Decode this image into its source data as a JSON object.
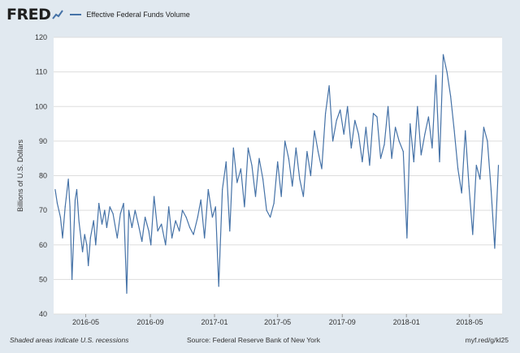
{
  "header": {
    "logo_text": "FRED",
    "logo_icon": "trend-line-icon"
  },
  "footer": {
    "note": "Shaded areas indicate U.S. recessions",
    "source": "Source: Federal Reserve Bank of New York",
    "link": "myf.red/g/kl25"
  },
  "colors": {
    "line": "#4572a7",
    "plot_bg": "#ffffff",
    "page_bg": "#e1e9f0",
    "grid": "#dddddd"
  },
  "chart_data": {
    "type": "line",
    "title": "",
    "xlabel": "",
    "ylabel": "Billions of U.S. Dollars",
    "ylim": [
      40,
      120
    ],
    "yticks": [
      40,
      50,
      60,
      70,
      80,
      90,
      100,
      110,
      120
    ],
    "xlim": [
      "2016-03-01",
      "2018-07-02"
    ],
    "xticks": [
      {
        "date": "2016-05-01",
        "label": "2016-05"
      },
      {
        "date": "2016-09-01",
        "label": "2016-09"
      },
      {
        "date": "2017-01-01",
        "label": "2017-01"
      },
      {
        "date": "2017-05-01",
        "label": "2017-05"
      },
      {
        "date": "2017-09-01",
        "label": "2017-09"
      },
      {
        "date": "2018-01-01",
        "label": "2018-01"
      },
      {
        "date": "2018-05-01",
        "label": "2018-05"
      }
    ],
    "grid": true,
    "series": [
      {
        "name": "Effective Federal Funds Volume",
        "x": [
          "2016-03-04",
          "2016-03-08",
          "2016-03-14",
          "2016-03-18",
          "2016-03-23",
          "2016-03-29",
          "2016-04-01",
          "2016-04-05",
          "2016-04-11",
          "2016-04-14",
          "2016-04-18",
          "2016-04-25",
          "2016-04-29",
          "2016-05-03",
          "2016-05-06",
          "2016-05-10",
          "2016-05-16",
          "2016-05-20",
          "2016-05-26",
          "2016-06-01",
          "2016-06-06",
          "2016-06-10",
          "2016-06-16",
          "2016-06-22",
          "2016-06-30",
          "2016-07-06",
          "2016-07-12",
          "2016-07-18",
          "2016-07-22",
          "2016-07-28",
          "2016-08-03",
          "2016-08-09",
          "2016-08-16",
          "2016-08-22",
          "2016-08-29",
          "2016-09-02",
          "2016-09-08",
          "2016-09-15",
          "2016-09-22",
          "2016-09-30",
          "2016-10-06",
          "2016-10-12",
          "2016-10-19",
          "2016-10-26",
          "2016-11-01",
          "2016-11-08",
          "2016-11-15",
          "2016-11-22",
          "2016-11-30",
          "2016-12-06",
          "2016-12-13",
          "2016-12-20",
          "2016-12-28",
          "2017-01-03",
          "2017-01-09",
          "2017-01-16",
          "2017-01-23",
          "2017-01-30",
          "2017-02-06",
          "2017-02-13",
          "2017-02-20",
          "2017-02-27",
          "2017-03-06",
          "2017-03-13",
          "2017-03-20",
          "2017-03-27",
          "2017-04-03",
          "2017-04-10",
          "2017-04-17",
          "2017-04-24",
          "2017-05-01",
          "2017-05-08",
          "2017-05-15",
          "2017-05-22",
          "2017-05-29",
          "2017-06-05",
          "2017-06-12",
          "2017-06-19",
          "2017-06-26",
          "2017-07-03",
          "2017-07-10",
          "2017-07-17",
          "2017-07-24",
          "2017-07-31",
          "2017-08-07",
          "2017-08-14",
          "2017-08-21",
          "2017-08-28",
          "2017-09-04",
          "2017-09-11",
          "2017-09-18",
          "2017-09-25",
          "2017-10-02",
          "2017-10-09",
          "2017-10-16",
          "2017-10-23",
          "2017-10-30",
          "2017-11-06",
          "2017-11-13",
          "2017-11-20",
          "2017-11-27",
          "2017-12-04",
          "2017-12-11",
          "2017-12-18",
          "2017-12-26",
          "2018-01-02",
          "2018-01-08",
          "2018-01-15",
          "2018-01-22",
          "2018-01-29",
          "2018-02-05",
          "2018-02-12",
          "2018-02-19",
          "2018-02-26",
          "2018-03-05",
          "2018-03-12",
          "2018-03-19",
          "2018-03-26",
          "2018-04-02",
          "2018-04-09",
          "2018-04-16",
          "2018-04-23",
          "2018-04-30",
          "2018-05-07",
          "2018-05-14",
          "2018-05-21",
          "2018-05-28",
          "2018-06-04",
          "2018-06-11",
          "2018-06-18",
          "2018-06-25"
        ],
        "values": [
          76,
          72,
          68,
          62,
          71,
          79,
          71,
          50,
          73,
          76,
          67,
          58,
          63,
          60,
          54,
          62,
          67,
          60,
          72,
          66,
          70,
          65,
          71,
          69,
          62,
          69,
          72,
          46,
          70,
          65,
          70,
          66,
          61,
          68,
          64,
          60,
          74,
          64,
          66,
          60,
          71,
          62,
          67,
          64,
          70,
          68,
          65,
          63,
          68,
          73,
          62,
          76,
          68,
          71,
          48,
          76,
          84,
          64,
          88,
          78,
          82,
          71,
          88,
          83,
          74,
          85,
          79,
          70,
          68,
          72,
          84,
          74,
          90,
          85,
          77,
          88,
          79,
          74,
          87,
          80,
          93,
          87,
          82,
          98,
          106,
          90,
          96,
          99,
          92,
          100,
          88,
          96,
          92,
          84,
          94,
          83,
          98,
          97,
          85,
          89,
          100,
          85,
          94,
          90,
          87,
          62,
          95,
          84,
          100,
          86,
          92,
          97,
          88,
          109,
          84,
          115,
          110,
          103,
          93,
          82,
          75,
          93,
          77,
          63,
          83,
          79,
          94,
          90,
          76,
          59,
          83
        ]
      }
    ]
  }
}
